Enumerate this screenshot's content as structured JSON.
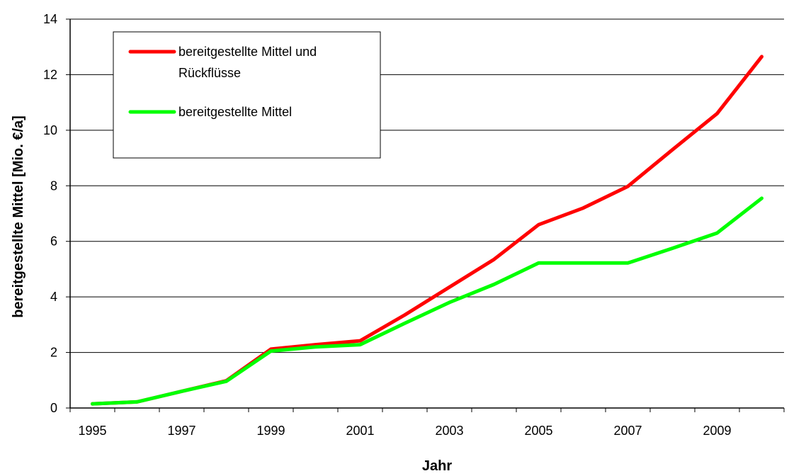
{
  "chart_data": {
    "type": "line",
    "xlabel": "Jahr",
    "ylabel": "bereitgestellte Mittel [Mio. €/a]",
    "x": [
      1995,
      1996,
      1997,
      1998,
      1999,
      2000,
      2001,
      2002,
      2003,
      2004,
      2005,
      2006,
      2007,
      2008,
      2009,
      2010
    ],
    "xticks": [
      "1995",
      "1997",
      "1999",
      "2001",
      "2003",
      "2005",
      "2007",
      "2009"
    ],
    "yticks": [
      "0",
      "2",
      "4",
      "6",
      "8",
      "10",
      "12",
      "14"
    ],
    "ylim": [
      0,
      14
    ],
    "grid": "horizontal",
    "legend_position": "top-left",
    "series": [
      {
        "name_lines": [
          "bereitgestellte Mittel und",
          "Rückflüsse"
        ],
        "color": "#ff0000",
        "values": [
          0.15,
          0.22,
          0.6,
          0.98,
          2.12,
          2.28,
          2.42,
          3.35,
          4.35,
          5.35,
          6.6,
          7.2,
          7.98,
          9.3,
          10.6,
          12.65
        ]
      },
      {
        "name_lines": [
          "bereitgestellte Mittel"
        ],
        "color": "#00ff00",
        "values": [
          0.15,
          0.22,
          0.6,
          0.96,
          2.05,
          2.2,
          2.28,
          3.05,
          3.8,
          4.45,
          5.22,
          5.22,
          5.22,
          5.75,
          6.3,
          7.55
        ]
      }
    ]
  }
}
